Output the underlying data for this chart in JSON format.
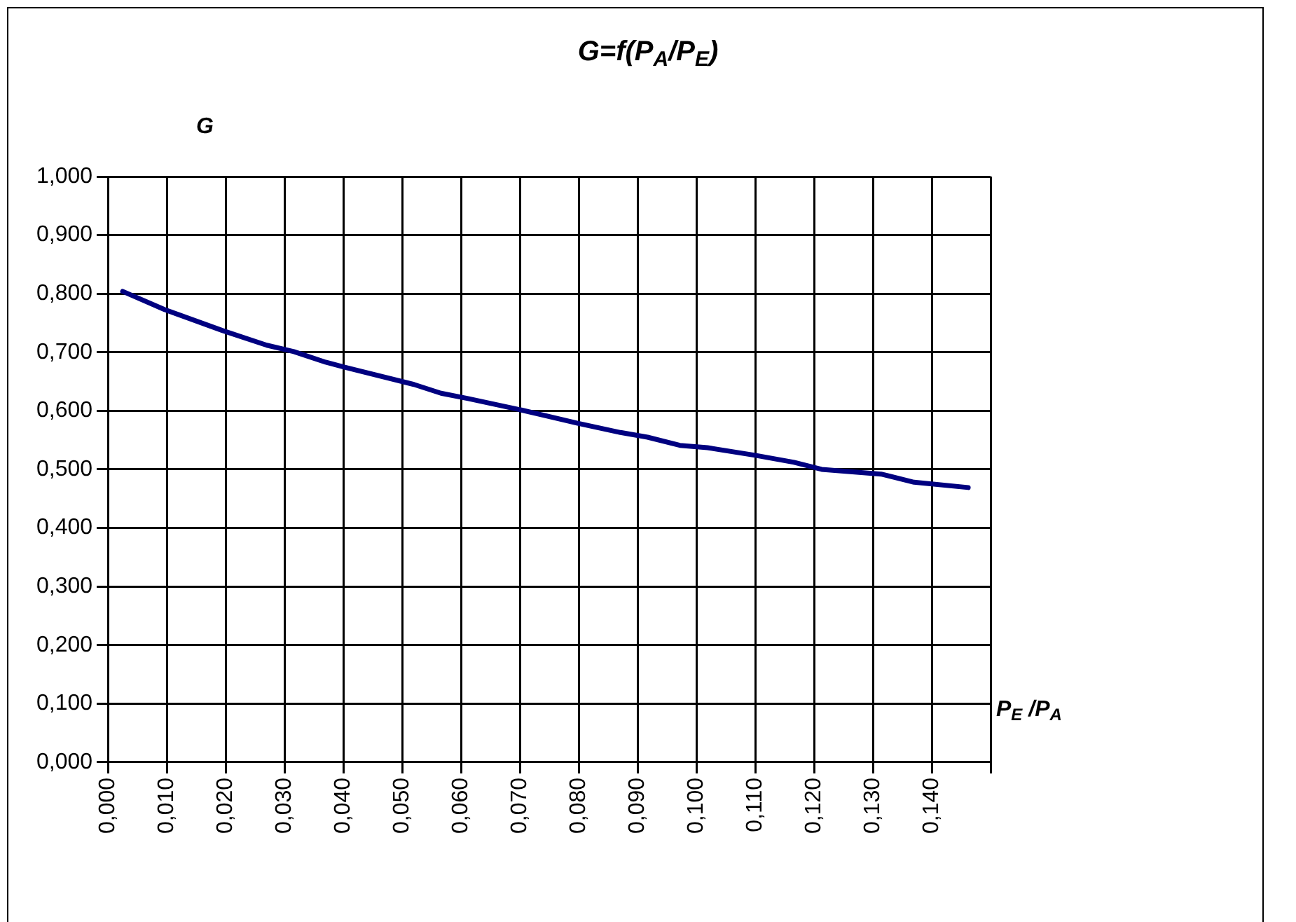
{
  "chart_data": {
    "type": "line",
    "title": "G=f(P$_{A}$/P$_{E}$)",
    "ylabel": "G",
    "xlabel": "P$_{E}$ /P$_{A}$",
    "x": [
      0.0025,
      0.0096,
      0.0195,
      0.027,
      0.0316,
      0.037,
      0.04,
      0.052,
      0.0566,
      0.0612,
      0.0695,
      0.0704,
      0.0797,
      0.0871,
      0.0917,
      0.0972,
      0.1019,
      0.11,
      0.1166,
      0.1213,
      0.1314,
      0.137,
      0.1462
    ],
    "values": [
      0.804,
      0.773,
      0.737,
      0.712,
      0.701,
      0.683,
      0.675,
      0.645,
      0.63,
      0.621,
      0.603,
      0.601,
      0.579,
      0.563,
      0.555,
      0.541,
      0.537,
      0.524,
      0.512,
      0.5,
      0.492,
      0.478,
      0.469
    ],
    "color": "#000080",
    "marker": "none",
    "line_style": "solid",
    "grid": true,
    "legend": false,
    "xlim": [
      0,
      0.15
    ],
    "xticks": [
      {
        "value": 0,
        "label": "0,000"
      },
      {
        "value": 0.01,
        "label": "0,010"
      },
      {
        "value": 0.02,
        "label": "0,020"
      },
      {
        "value": 0.03,
        "label": "0,030"
      },
      {
        "value": 0.04,
        "label": "0,040"
      },
      {
        "value": 0.05,
        "label": "0,050"
      },
      {
        "value": 0.06,
        "label": "0,060"
      },
      {
        "value": 0.07,
        "label": "0,070"
      },
      {
        "value": 0.08,
        "label": "0,080"
      },
      {
        "value": 0.09,
        "label": "0,090"
      },
      {
        "value": 0.1,
        "label": "0,100"
      },
      {
        "value": 0.11,
        "label": "0,110"
      },
      {
        "value": 0.12,
        "label": "0,120"
      },
      {
        "value": 0.13,
        "label": "0,130"
      },
      {
        "value": 0.14,
        "label": "0,140"
      },
      {
        "value": 0.15,
        "label": null
      }
    ],
    "ylim": [
      0,
      1
    ],
    "yticks": [
      {
        "value": 0,
        "label": "0,000"
      },
      {
        "value": 0.1,
        "label": "0,100"
      },
      {
        "value": 0.2,
        "label": "0,200"
      },
      {
        "value": 0.3,
        "label": "0,300"
      },
      {
        "value": 0.4,
        "label": "0,400"
      },
      {
        "value": 0.5,
        "label": "0,500"
      },
      {
        "value": 0.6,
        "label": "0,600"
      },
      {
        "value": 0.7,
        "label": "0,700"
      },
      {
        "value": 0.8,
        "label": "0,800"
      },
      {
        "value": 0.9,
        "label": "0,900"
      },
      {
        "value": 1,
        "label": "1,000"
      }
    ]
  }
}
